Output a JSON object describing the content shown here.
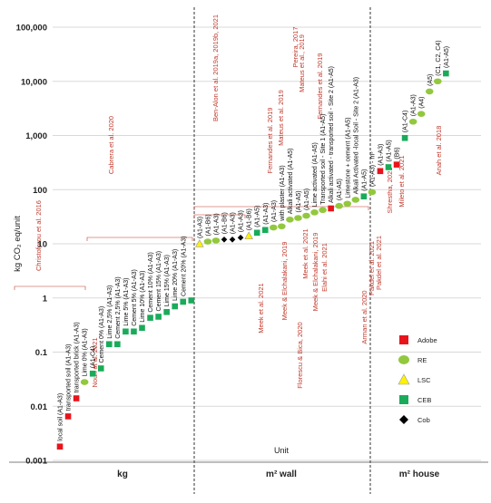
{
  "chart_data": {
    "type": "scatter",
    "title": "",
    "ylabel": "kg CO₂ eq/unit",
    "xlabel": "Unit",
    "yscale": "log",
    "ylim": [
      0.001,
      100000
    ],
    "yticks": [
      {
        "value": 0.001,
        "label": "0.001"
      },
      {
        "value": 0.01,
        "label": "0.01"
      },
      {
        "value": 0.1,
        "label": "0.1"
      },
      {
        "value": 1,
        "label": "1"
      },
      {
        "value": 10,
        "label": "10"
      },
      {
        "value": 100,
        "label": "100"
      },
      {
        "value": 1000,
        "label": "1,000"
      },
      {
        "value": 10000,
        "label": "10,000"
      },
      {
        "value": 100000,
        "label": "100,000"
      }
    ],
    "grid": true,
    "legend_position": "bottom-right",
    "unit_groups": [
      {
        "label": "kg",
        "from": 1,
        "to": 23
      },
      {
        "label": "m² wall",
        "from": 24,
        "to": 46
      },
      {
        "label": "m² house",
        "from": 47,
        "to": 56
      }
    ],
    "series": [
      {
        "name": "Adobe",
        "marker": "square",
        "color": "#e8141c"
      },
      {
        "name": "RE",
        "marker": "circle",
        "color": "#92c83e"
      },
      {
        "name": "LSC",
        "marker": "triangle",
        "color": "#fff200"
      },
      {
        "name": "CEB",
        "marker": "square",
        "color": "#1aab5a"
      },
      {
        "name": "Cob",
        "marker": "diamond",
        "color": "#000000"
      }
    ],
    "points": [
      {
        "x": 1,
        "y": 0.0018,
        "series": "Adobe",
        "label": "local soil (A1-A3)"
      },
      {
        "x": 2,
        "y": 0.0065,
        "series": "Adobe",
        "label": "transported soil (A1-A3)"
      },
      {
        "x": 3,
        "y": 0.014,
        "series": "Adobe",
        "label": "transported brick (A1-A3)"
      },
      {
        "x": 4,
        "y": 0.028,
        "series": "RE",
        "label": "Lime 0% (A1-A3)"
      },
      {
        "x": 5,
        "y": 0.04,
        "series": "CEB",
        "label": "(A1-C4)"
      },
      {
        "x": 6,
        "y": 0.05,
        "series": "CEB",
        "label": "Cement 0% (A1-A3)"
      },
      {
        "x": 7,
        "y": 0.14,
        "series": "CEB",
        "label": "Lime 2,5% (A1-A3)"
      },
      {
        "x": 8,
        "y": 0.14,
        "series": "CEB",
        "label": "Cement 2,5% (A1-A3)"
      },
      {
        "x": 9,
        "y": 0.24,
        "series": "CEB",
        "label": "Lime 5% (A1-A3)"
      },
      {
        "x": 10,
        "y": 0.24,
        "series": "CEB",
        "label": "Cement 5% (A1-A3)"
      },
      {
        "x": 11,
        "y": 0.28,
        "series": "CEB",
        "label": "Lime 10% (A1-A3)"
      },
      {
        "x": 12,
        "y": 0.43,
        "series": "CEB",
        "label": "Cement 10% (A1-A3)"
      },
      {
        "x": 13,
        "y": 0.45,
        "series": "CEB",
        "label": "Cement 15% (A1-A3)"
      },
      {
        "x": 14,
        "y": 0.55,
        "series": "CEB",
        "label": "Lime 15% (A1-A3)"
      },
      {
        "x": 15,
        "y": 0.7,
        "series": "CEB",
        "label": "Lime 20% (A1-A3)"
      },
      {
        "x": 16,
        "y": 0.85,
        "series": "CEB",
        "label": "Cement 20% (A1-A3)"
      },
      {
        "x": 17,
        "y": 0.9,
        "series": "CEB",
        "label": ""
      },
      {
        "x": 18,
        "y": 10,
        "series": "LSC",
        "label": "(A1-A3)"
      },
      {
        "x": 19,
        "y": 11,
        "series": "RE",
        "label": "(A1-B6)"
      },
      {
        "x": 20,
        "y": 11.5,
        "series": "RE",
        "label": "(A1-A3)"
      },
      {
        "x": 21,
        "y": 12,
        "series": "Cob",
        "label": "(A1-B6)"
      },
      {
        "x": 22,
        "y": 12,
        "series": "Cob",
        "label": "(A1-A3)"
      },
      {
        "x": 23,
        "y": 13,
        "series": "Cob",
        "label": "(A1-A3)"
      },
      {
        "x": 24,
        "y": 14,
        "series": "LSC",
        "label": "(A1-B6)"
      },
      {
        "x": 25,
        "y": 16,
        "series": "CEB",
        "label": "(A1-A5)"
      },
      {
        "x": 26,
        "y": 18,
        "series": "CEB",
        "label": "(A1-A3)"
      },
      {
        "x": 27,
        "y": 20,
        "series": "RE",
        "label": "(A1-A3)"
      },
      {
        "x": 28,
        "y": 21,
        "series": "RE",
        "label": "with plaster (A1-A3)"
      },
      {
        "x": 29,
        "y": 28,
        "series": "RE",
        "label": "Alkali activated (A1-A5)"
      },
      {
        "x": 30,
        "y": 30,
        "series": "RE",
        "label": "(A1-A5)"
      },
      {
        "x": 31,
        "y": 33,
        "series": "RE",
        "label": "(A1-A5)"
      },
      {
        "x": 32,
        "y": 38,
        "series": "RE",
        "label": "Lime activated (A1-A5)"
      },
      {
        "x": 33,
        "y": 42,
        "series": "RE",
        "label": "Transported soil - Site 1 (A1-A5)"
      },
      {
        "x": 34,
        "y": 45,
        "series": "Adobe",
        "label": "Alkali activated - transported soil - Site 2 (A1-A5)"
      },
      {
        "x": 35,
        "y": 50,
        "series": "RE",
        "label": "(A1-A5)"
      },
      {
        "x": 36,
        "y": 55,
        "series": "RE",
        "label": "Limestone + cement (A1-A5)"
      },
      {
        "x": 37,
        "y": 65,
        "series": "RE",
        "label": "Alkali Activated -local Soil - Site 2 (A1-A3)"
      },
      {
        "x": 38,
        "y": 75,
        "series": "CEB",
        "label": "(A1-A5)"
      },
      {
        "x": 39,
        "y": 90,
        "series": "RE",
        "label": "(A1-A3) - m³"
      },
      {
        "x": 40,
        "y": 220,
        "series": "Adobe",
        "label": "(A1-A3)"
      },
      {
        "x": 41,
        "y": 260,
        "series": "CEB",
        "label": "(A1-A5)"
      },
      {
        "x": 42,
        "y": 290,
        "series": "Adobe",
        "label": "(B6)"
      },
      {
        "x": 43,
        "y": 900,
        "series": "CEB",
        "label": "(A1-C4)"
      },
      {
        "x": 44,
        "y": 1800,
        "series": "RE",
        "label": "(A1-A3)"
      },
      {
        "x": 45,
        "y": 2500,
        "series": "RE",
        "label": "(A4)"
      },
      {
        "x": 46,
        "y": 6500,
        "series": "RE",
        "label": "(A5)"
      },
      {
        "x": 47,
        "y": 10000,
        "series": "RE",
        "label": "(C1, C2, C4)"
      },
      {
        "x": 48,
        "y": 14000,
        "series": "CEB",
        "label": "(A1-A5)"
      }
    ],
    "references": [
      "Christoforou et al. 2016",
      "Cabrera et al. 2020",
      "Nouri et al. 2021",
      "Ben-Alon et al. 2019a, 2019b, 2021",
      "Fernandes et al. 2019",
      "Mateus et al. 2019",
      "Pereira, 2017",
      "Mateus et al., 2019",
      "Fernandes et al. 2019",
      "Meek et al. 2021",
      "Meek & Elchalakani, 2019",
      "Florescu & Bica, 2020",
      "Meek et al. 2021",
      "Meek & Elchalakani, 2019",
      "Elahi et al. 2021",
      "Arman et al. 2020",
      "Pakdel et al. 2021",
      "Pakdel et al. 2021",
      "Shrestha, 2021",
      "Mileto et al. 2021",
      "Anah et al. 2018"
    ]
  }
}
